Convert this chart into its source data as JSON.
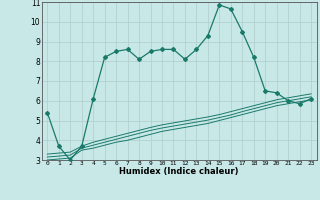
{
  "title": "",
  "xlabel": "Humidex (Indice chaleur)",
  "bg_color": "#c8e8e8",
  "grid_color": "#b0cccc",
  "line_color": "#1a7a6a",
  "xlim": [
    -0.5,
    23.5
  ],
  "ylim": [
    3,
    11
  ],
  "yticks": [
    3,
    4,
    5,
    6,
    7,
    8,
    9,
    10,
    11
  ],
  "xticks": [
    0,
    1,
    2,
    3,
    4,
    5,
    6,
    7,
    8,
    9,
    10,
    11,
    12,
    13,
    14,
    15,
    16,
    17,
    18,
    19,
    20,
    21,
    22,
    23
  ],
  "main_x": [
    0,
    1,
    2,
    3,
    4,
    5,
    6,
    7,
    8,
    9,
    10,
    11,
    12,
    13,
    14,
    15,
    16,
    17,
    18,
    19,
    20,
    21,
    22,
    23
  ],
  "main_y": [
    5.4,
    3.7,
    3.0,
    3.7,
    6.1,
    8.2,
    8.5,
    8.6,
    8.1,
    8.5,
    8.6,
    8.6,
    8.1,
    8.6,
    9.3,
    10.85,
    10.65,
    9.5,
    8.2,
    6.5,
    6.4,
    6.0,
    5.85,
    6.1
  ],
  "line2_x": [
    0,
    1,
    2,
    3,
    4,
    5,
    6,
    7,
    8,
    9,
    10,
    11,
    12,
    13,
    14,
    15,
    16,
    17,
    18,
    19,
    20,
    21,
    22,
    23
  ],
  "line2_y": [
    3.0,
    3.05,
    3.1,
    3.5,
    3.6,
    3.75,
    3.9,
    4.0,
    4.15,
    4.3,
    4.45,
    4.55,
    4.65,
    4.75,
    4.85,
    5.0,
    5.15,
    5.3,
    5.45,
    5.6,
    5.75,
    5.85,
    5.95,
    6.05
  ],
  "line3_x": [
    0,
    1,
    2,
    3,
    4,
    5,
    6,
    7,
    8,
    9,
    10,
    11,
    12,
    13,
    14,
    15,
    16,
    17,
    18,
    19,
    20,
    21,
    22,
    23
  ],
  "line3_y": [
    3.15,
    3.2,
    3.25,
    3.6,
    3.75,
    3.9,
    4.05,
    4.2,
    4.35,
    4.5,
    4.62,
    4.72,
    4.82,
    4.92,
    5.02,
    5.15,
    5.28,
    5.45,
    5.6,
    5.75,
    5.9,
    6.0,
    6.1,
    6.2
  ],
  "line4_x": [
    0,
    1,
    2,
    3,
    4,
    5,
    6,
    7,
    8,
    9,
    10,
    11,
    12,
    13,
    14,
    15,
    16,
    17,
    18,
    19,
    20,
    21,
    22,
    23
  ],
  "line4_y": [
    3.3,
    3.35,
    3.4,
    3.7,
    3.9,
    4.05,
    4.2,
    4.35,
    4.5,
    4.65,
    4.78,
    4.88,
    4.98,
    5.08,
    5.18,
    5.3,
    5.45,
    5.6,
    5.75,
    5.9,
    6.05,
    6.15,
    6.25,
    6.35
  ]
}
